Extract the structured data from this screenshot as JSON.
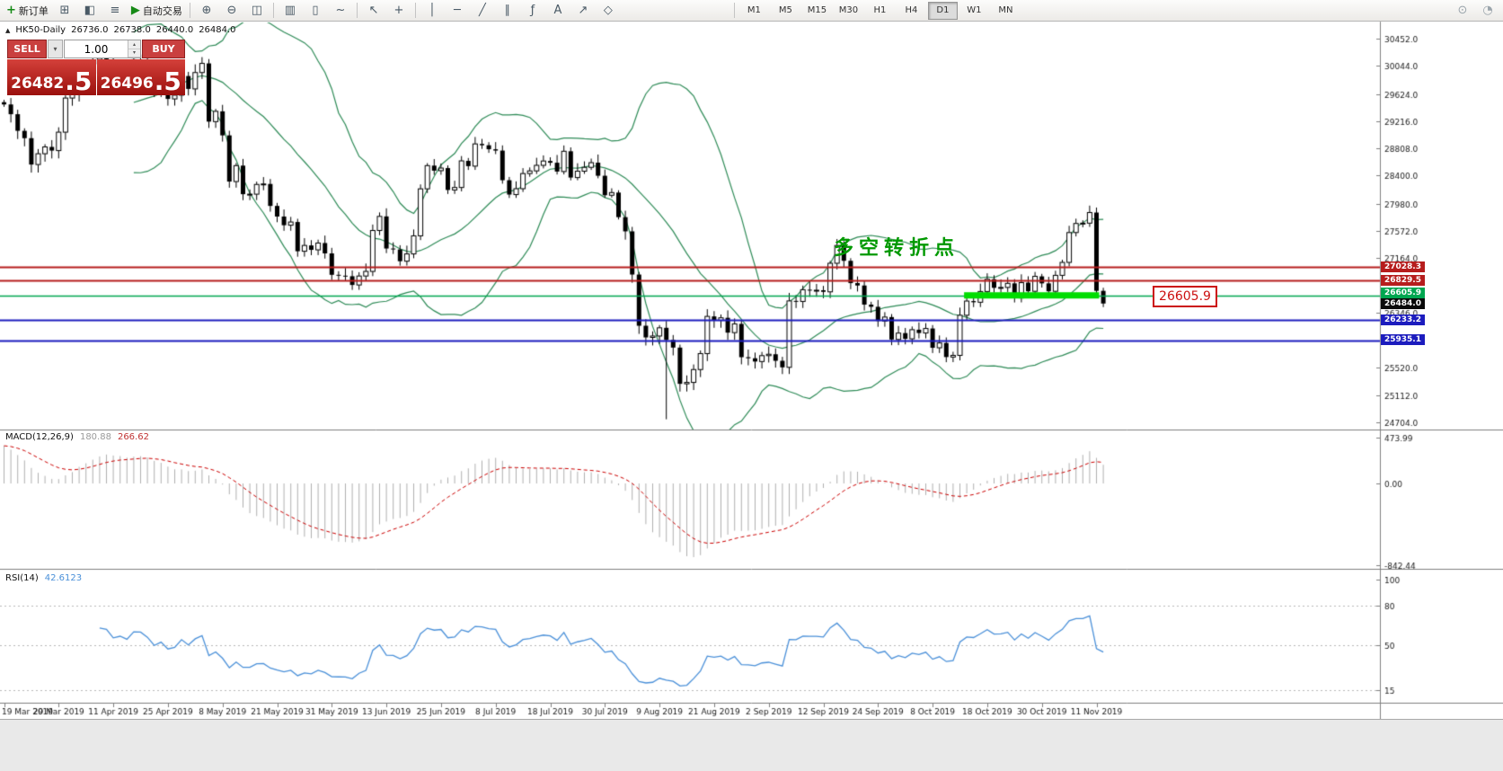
{
  "toolbar": {
    "new_order_label": "新订单",
    "autotrade_label": "自动交易",
    "icons": {
      "new_order": "+",
      "new_chart": "⊞",
      "profiles": "◧",
      "market_watch": "≡",
      "autotrade": "▶",
      "zoom_in": "⊕",
      "zoom_out": "⊖",
      "tile": "◫",
      "bars": "▥",
      "candles": "▯",
      "linechart": "~",
      "cursor": "↖",
      "crosshair": "+",
      "vline": "│",
      "hline": "─",
      "tline": "╱",
      "channel": "∥",
      "fibo": "ƒ",
      "text": "A",
      "arrows": "↗",
      "shapes": "◇",
      "search": "⊙",
      "layout": "◔",
      "dropdown": "▾",
      "up": "▴",
      "down": "▾"
    },
    "timeframes": [
      "M1",
      "M5",
      "M15",
      "M30",
      "H1",
      "H4",
      "D1",
      "W1",
      "MN"
    ],
    "active_timeframe": "D1"
  },
  "chart_header": {
    "collapse_arrow": "▲",
    "symbol": "HK50-Daily",
    "open": "26736.0",
    "high": "26738.0",
    "low": "26440.0",
    "close": "26484.0"
  },
  "trade_panel": {
    "sell_label": "SELL",
    "buy_label": "BUY",
    "volume": "1.00",
    "sell_price_int": "26482",
    "sell_price_frac": ".5",
    "buy_price_int": "26496",
    "buy_price_frac": ".5"
  },
  "annotations": {
    "turning_point_text": "多空转折点",
    "price_callout": "26605.9"
  },
  "price_labels": {
    "r1": "27028.3",
    "r2": "26829.5",
    "g": "26605.9",
    "current": "26484.0",
    "b1": "26233.2",
    "b2": "25935.1"
  },
  "macd_panel": {
    "title": "MACD(12,26,9)",
    "main_value": "180.88",
    "signal_value": "266.62",
    "axis": [
      "473.99",
      "0.00",
      "-842.44"
    ]
  },
  "rsi_panel": {
    "title": "RSI(14)",
    "value": "42.6123",
    "axis": [
      "100",
      "80",
      "50",
      "15"
    ],
    "levels": [
      80,
      50,
      15
    ]
  },
  "colors": {
    "up_candle": "#ffffff",
    "down_candle": "#000000",
    "candle_line": "#000000",
    "bollinger": "#2e8b57",
    "macd_hist": "#b0b0b0",
    "macd_signal": "#cc0000",
    "rsi": "#4a90d9",
    "axis_text": "#1a1a1a",
    "grid_line": "#808080",
    "highlight_green": "#00dd00"
  },
  "chart_data": {
    "type": "candlestick+indicators",
    "symbol": "HK50",
    "timeframe": "Daily",
    "ohlc_current": {
      "open": 26736.0,
      "high": 26738.0,
      "low": 26440.0,
      "close": 26484.0
    },
    "y_axis_ticks": [
      30452.0,
      30044.0,
      29624.0,
      29216.0,
      28808.0,
      28400.0,
      27980.0,
      27572.0,
      27164.0,
      26346.0,
      25520.0,
      25112.0,
      24704.0
    ],
    "x_axis_labels": [
      "19 Mar 2019",
      "29 Mar 2019",
      "11 Apr 2019",
      "25 Apr 2019",
      "8 May 2019",
      "21 May 2019",
      "31 May 2019",
      "13 Jun 2019",
      "25 Jun 2019",
      "8 Jul 2019",
      "18 Jul 2019",
      "30 Jul 2019",
      "9 Aug 2019",
      "21 Aug 2019",
      "2 Sep 2019",
      "12 Sep 2019",
      "24 Sep 2019",
      "8 Oct 2019",
      "18 Oct 2019",
      "30 Oct 2019",
      "11 Nov 2019"
    ],
    "bars_per_label": 8,
    "first_open": 29500,
    "closes": [
      29466,
      29320,
      29071,
      28961,
      28566,
      28728,
      28830,
      28775,
      29051,
      29562,
      29624,
      29986,
      29936,
      30077,
      30158,
      30119,
      29839,
      29910,
      29810,
      30129,
      30124,
      29963,
      29680,
      29805,
      29549,
      29605,
      29892,
      29699,
      29944,
      30081,
      29209,
      29363,
      29003,
      28311,
      28550,
      28122,
      28122,
      28268,
      28275,
      27946,
      27787,
      27657,
      27705,
      27267,
      27354,
      27288,
      27390,
      27235,
      26914,
      26901,
      26893,
      26762,
      26896,
      26965,
      27578,
      27789,
      27308,
      27294,
      27118,
      27227,
      27498,
      28202,
      28550,
      28474,
      28513,
      28185,
      28222,
      28621,
      28542,
      28875,
      28855,
      28795,
      28775,
      28331,
      28116,
      28204,
      28431,
      28471,
      28554,
      28619,
      28593,
      28461,
      28765,
      28371,
      28466,
      28524,
      28594,
      28398,
      28106,
      28146,
      27778,
      27565,
      26918,
      26151,
      25976,
      25997,
      26120,
      25939,
      25824,
      25281,
      25302,
      25495,
      25734,
      26291,
      26231,
      26270,
      26048,
      26179,
      25680,
      25664,
      25615,
      25703,
      25724,
      25626,
      25528,
      26523,
      26515,
      26691,
      26681,
      26683,
      26659,
      27087,
      27353,
      27124,
      26790,
      26754,
      26468,
      26435,
      26222,
      26281,
      25945,
      26041,
      25955,
      26092,
      26042,
      26110,
      25821,
      25893,
      25682,
      25707,
      26308,
      26521,
      26503,
      26664,
      26848,
      26719,
      26725,
      26786,
      26567,
      26797,
      26667,
      26891,
      26786,
      26667,
      26906,
      27100,
      27547,
      27683,
      27688,
      27847,
      26674,
      26484
    ],
    "special_lows": {
      "97": 24750
    },
    "overlays": {
      "bollinger": {
        "period": 20,
        "deviation": 2
      },
      "hlines": [
        {
          "price": 27028.3,
          "color": "#b61d1d",
          "width": 2
        },
        {
          "price": 26829.5,
          "color": "#b61d1d",
          "width": 2
        },
        {
          "price": 26605.9,
          "color": "#00a650",
          "width": 1.5
        },
        {
          "price": 26233.2,
          "color": "#1c1cbe",
          "width": 2
        },
        {
          "price": 25935.1,
          "color": "#1c1cbe",
          "width": 2
        }
      ],
      "highlight": {
        "price": 26605.9,
        "from_bar": 141,
        "to_bar": 160,
        "color": "#00dd00"
      }
    },
    "indicators": [
      {
        "name": "MACD",
        "params": [
          12,
          26,
          9
        ],
        "values": [
          180.88,
          266.62
        ]
      },
      {
        "name": "RSI",
        "params": [
          14
        ],
        "value": 42.6123
      }
    ]
  }
}
